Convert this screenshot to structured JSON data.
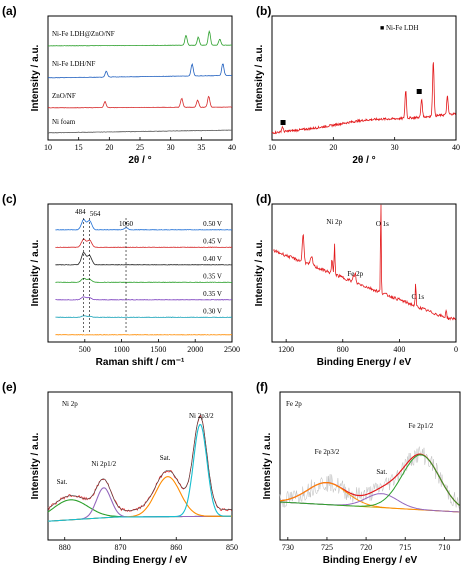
{
  "chart_data": [
    {
      "id": "a",
      "type": "line",
      "panel_label": "(a)",
      "xlabel": "2θ / °",
      "ylabel": "Intensity / a.u.",
      "xlim": [
        10,
        40
      ],
      "xticks": [
        "10",
        "15",
        "20",
        "25",
        "30",
        "35",
        "40"
      ],
      "series": [
        {
          "name": "Ni-Fe LDH@ZnO/NF",
          "color": "#2ca02c",
          "peaks": [
            [
              32.5,
              10
            ],
            [
              34.5,
              8
            ],
            [
              36.3,
              14
            ],
            [
              38,
              6
            ]
          ],
          "slope": 0.25
        },
        {
          "name": "Ni-Fe LDH/NF",
          "color": "#1f5fbf",
          "peaks": [
            [
              19.5,
              6
            ],
            [
              33.5,
              12
            ],
            [
              38.5,
              12
            ]
          ],
          "slope": 0.8
        },
        {
          "name": "ZnO/NF",
          "color": "#d62728",
          "peaks": [
            [
              19.3,
              6
            ],
            [
              31.8,
              9
            ],
            [
              34.4,
              7
            ],
            [
              36.2,
              11
            ]
          ],
          "slope": 0.25
        },
        {
          "name": "Ni foam",
          "color": "#555555",
          "peaks": [],
          "slope": 0.9
        }
      ]
    },
    {
      "id": "b",
      "type": "line",
      "panel_label": "(b)",
      "xlabel": "2θ / °",
      "ylabel": "Intensity / a.u.",
      "xlim": [
        10,
        40
      ],
      "xticks": [
        "10",
        "20",
        "30",
        "40"
      ],
      "legend": "■ Ni-Fe LDH",
      "series": [
        {
          "name": "",
          "color": "#e31a1c",
          "peaks": [
            [
              11.7,
              5
            ],
            [
              31.8,
              28
            ],
            [
              34.4,
              18
            ],
            [
              36.3,
              55
            ],
            [
              38.6,
              18
            ]
          ],
          "slope": 1.6
        }
      ],
      "markers_x": [
        11.8,
        34.0
      ]
    },
    {
      "id": "c",
      "type": "line",
      "panel_label": "(c)",
      "xlabel": "Raman shift / cm⁻¹",
      "ylabel": "Intensity / a.u.",
      "xlim": [
        0,
        2500
      ],
      "xticks": [
        "500",
        "1000",
        "1500",
        "2000",
        "2500"
      ],
      "peak_labels": [
        "484",
        "564",
        "1060"
      ],
      "series": [
        {
          "name": "0.50 V",
          "color": "#1f6fd6",
          "peaks": [
            [
              484,
              10
            ],
            [
              564,
              9
            ],
            [
              1060,
              2
            ]
          ]
        },
        {
          "name": "0.45 V",
          "color": "#d62728",
          "peaks": [
            [
              484,
              8
            ],
            [
              564,
              7
            ]
          ]
        },
        {
          "name": "0.40 V",
          "color": "#222222",
          "peaks": [
            [
              484,
              12
            ],
            [
              564,
              9
            ]
          ]
        },
        {
          "name": "0.35 V",
          "color": "#2ca02c",
          "peaks": [
            [
              484,
              4
            ],
            [
              564,
              3
            ]
          ]
        },
        {
          "name": "0.35 V",
          "color": "#7b3fbf",
          "peaks": [
            [
              484,
              3
            ],
            [
              564,
              2
            ]
          ]
        },
        {
          "name": "0.30 V",
          "color": "#17a2b8",
          "peaks": [
            [
              484,
              1.5
            ],
            [
              564,
              1
            ]
          ]
        },
        {
          "name": "",
          "color": "#ff8c00",
          "peaks": []
        }
      ]
    },
    {
      "id": "d",
      "type": "line",
      "panel_label": "(d)",
      "xlabel": "Binding Energy / eV",
      "ylabel": "Intensity / a.u.",
      "xlim": [
        1300,
        0
      ],
      "xticks": [
        "1200",
        "800",
        "400",
        "0"
      ],
      "annotations": [
        "Ni 2p",
        "Fe 2p",
        "O 1s",
        "C 1s"
      ],
      "series": [
        {
          "name": "",
          "color": "#e31a1c"
        }
      ]
    },
    {
      "id": "e",
      "type": "line",
      "panel_label": "(e)",
      "title": "Ni 2p",
      "xlabel": "Binding Energy / eV",
      "ylabel": "Intensity / a.u.",
      "xlim": [
        883,
        850
      ],
      "xticks": [
        "880",
        "870",
        "860",
        "850"
      ],
      "annotations": [
        "Sat.",
        "Ni 2p1/2",
        "Sat.",
        "Ni 2p3/2"
      ],
      "components": [
        {
          "center": 879,
          "height": 20,
          "width": 3.2,
          "color": "#2ca02c"
        },
        {
          "center": 873,
          "height": 30,
          "width": 1.3,
          "color": "#9467bd"
        },
        {
          "center": 861.5,
          "height": 40,
          "width": 2.2,
          "color": "#ff8c00"
        },
        {
          "center": 855.7,
          "height": 92,
          "width": 1.2,
          "color": "#17becf"
        }
      ]
    },
    {
      "id": "f",
      "type": "line",
      "panel_label": "(f)",
      "title": "Fe 2p",
      "xlabel": "Binding Energy / eV",
      "ylabel": "Intensity / a.u.",
      "xlim": [
        731,
        708
      ],
      "xticks": [
        "730",
        "725",
        "720",
        "715",
        "710"
      ],
      "annotations": [
        "Fe 2p3/2",
        "Sat.",
        "Fe 2p1/2"
      ],
      "components": [
        {
          "center": 725,
          "height": 22,
          "width": 2.5,
          "color": "#ff8c00"
        },
        {
          "center": 718,
          "height": 14,
          "width": 2.0,
          "color": "#9467bd"
        },
        {
          "center": 713,
          "height": 55,
          "width": 2.4,
          "color": "#2ca02c"
        }
      ]
    }
  ]
}
